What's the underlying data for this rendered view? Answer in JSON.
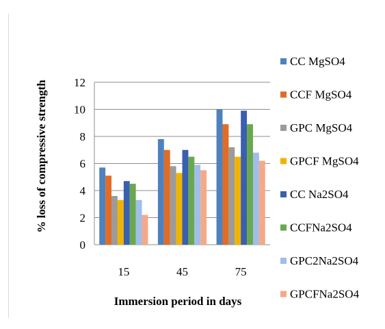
{
  "chart_data": {
    "type": "bar",
    "categories": [
      "15",
      "45",
      "75"
    ],
    "series": [
      {
        "name": "CC MgSO4",
        "color": "#4f81bd",
        "values": [
          5.7,
          7.8,
          10.0
        ]
      },
      {
        "name": "CCF MgSO4",
        "color": "#e06c26",
        "values": [
          5.1,
          7.0,
          8.9
        ]
      },
      {
        "name": "GPC MgSO4",
        "color": "#9b9b9b",
        "values": [
          3.6,
          5.8,
          7.2
        ]
      },
      {
        "name": "GPCF MgSO4",
        "color": "#f0b400",
        "values": [
          3.3,
          5.3,
          6.5
        ]
      },
      {
        "name": "CC Na2SO4",
        "color": "#3a5fb0",
        "values": [
          4.7,
          7.0,
          9.9
        ]
      },
      {
        "name": "CCFNa2SO4",
        "color": "#6aa84f",
        "values": [
          4.5,
          6.5,
          8.9
        ]
      },
      {
        "name": "GPC2Na2SO4",
        "color": "#9fbfe8",
        "values": [
          3.3,
          5.9,
          6.8
        ]
      },
      {
        "name": "GPCFNa2SO4",
        "color": "#f4a98a",
        "values": [
          2.2,
          5.5,
          6.2
        ]
      }
    ],
    "xlabel": "Immersion period in days",
    "ylabel": "% loss of compressive strength",
    "ylim": [
      0,
      12
    ],
    "yticks": [
      "0",
      "2",
      "4",
      "6",
      "8",
      "10",
      "12"
    ],
    "grid": true,
    "legend_position": "right"
  }
}
